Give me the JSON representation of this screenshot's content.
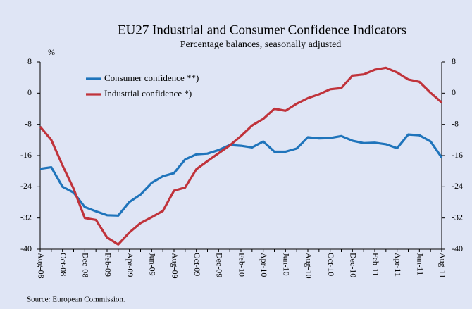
{
  "chart_data": {
    "type": "line",
    "title": "EU27 Industrial and Consumer Confidence Indicators",
    "subtitle": "Percentage balances, seasonally adjusted",
    "y_label": "%",
    "source": "Source: European Commission.",
    "categories": [
      "Aug-08",
      null,
      "Oct-08",
      null,
      "Dec-08",
      null,
      "Feb-09",
      null,
      "Apr-09",
      null,
      "Jun-09",
      null,
      "Aug-09",
      null,
      "Oct-09",
      null,
      "Dec-09",
      null,
      "Feb-10",
      null,
      "Apr-10",
      null,
      "Jun-10",
      null,
      "Aug-10",
      null,
      "Oct-10",
      null,
      "Dec-10",
      null,
      "Feb-11",
      null,
      "Apr-11",
      null,
      "Jun-11",
      null,
      "Aug-11"
    ],
    "series": [
      {
        "name": "Consumer confidence **)",
        "color": "#1f74bb",
        "values": [
          -19.4,
          -19,
          -24,
          -25.5,
          -29.2,
          -30.3,
          -31.3,
          -31.4,
          -27.9,
          -26,
          -23,
          -21.3,
          -20.5,
          -17,
          -15.7,
          -15.5,
          -14.6,
          -13.3,
          -13.5,
          -13.9,
          -12.4,
          -15,
          -15,
          -14.2,
          -11.3,
          -11.6,
          -11.5,
          -11,
          -12.2,
          -12.8,
          -12.7,
          -13.1,
          -14.1,
          -10.6,
          -10.8,
          -12.4,
          -16.5
        ]
      },
      {
        "name": "Industrial confidence *)",
        "color": "#c0333b",
        "values": [
          -8.6,
          -12,
          -18.5,
          -24.5,
          -32,
          -32.5,
          -37,
          -38.8,
          -35.7,
          -33.3,
          -31.8,
          -30.2,
          -25,
          -24.2,
          -19.5,
          -17.4,
          -15.4,
          -13.4,
          -11,
          -8.3,
          -6.6,
          -4,
          -4.5,
          -2.7,
          -1.3,
          -0.3,
          1,
          1.3,
          4.5,
          4.8,
          6,
          6.5,
          5.3,
          3.5,
          2.9,
          0.1,
          -2.4
        ]
      }
    ],
    "ylim": [
      -40,
      8
    ],
    "yticks": [
      8,
      0,
      -8,
      -16,
      -24,
      -32,
      -40
    ],
    "y2lim": [
      -40,
      8
    ],
    "y2ticks": [
      8,
      0,
      -8,
      -16,
      -24,
      -32,
      -40
    ],
    "legend": "upper left"
  }
}
